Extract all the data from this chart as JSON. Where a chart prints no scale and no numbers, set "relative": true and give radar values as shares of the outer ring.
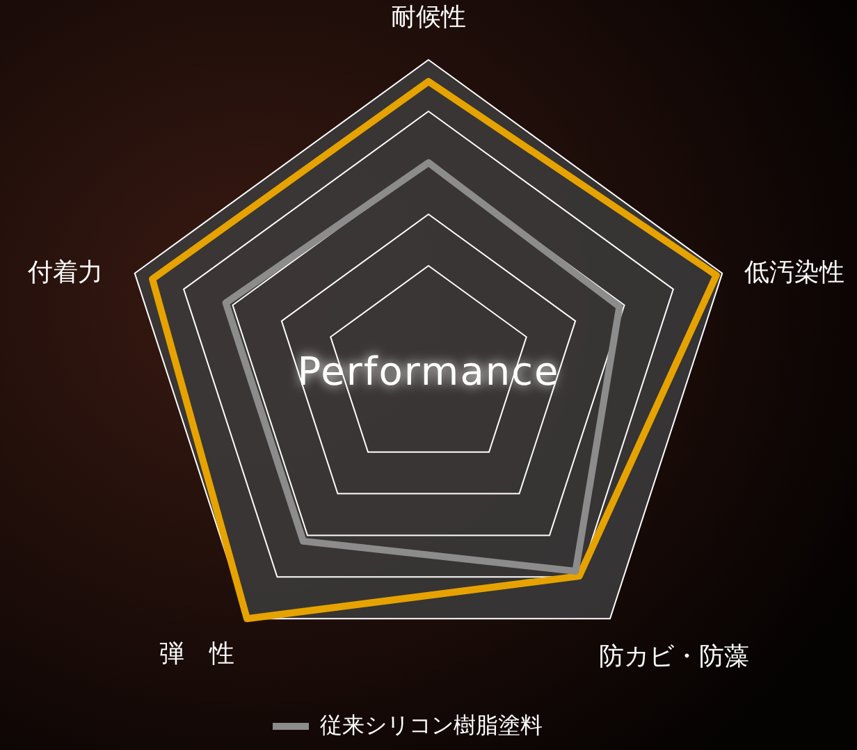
{
  "chart_data": {
    "type": "radar",
    "relative": true,
    "categories": [
      "耐候性",
      "低汚染性",
      "防カビ・防藻",
      "弾　性",
      "付着力"
    ],
    "series": [
      {
        "color": "#e6a300",
        "values": [
          0.93,
          0.98,
          0.83,
          1.0,
          0.94
        ]
      },
      {
        "name": "従来シリコン樹脂塗料",
        "color": "#8c8c8c",
        "values": [
          0.667,
          0.65,
          0.81,
          0.69,
          0.69
        ]
      }
    ],
    "annotations": [
      "Performance"
    ],
    "grid": true,
    "legend": "bottom"
  }
}
